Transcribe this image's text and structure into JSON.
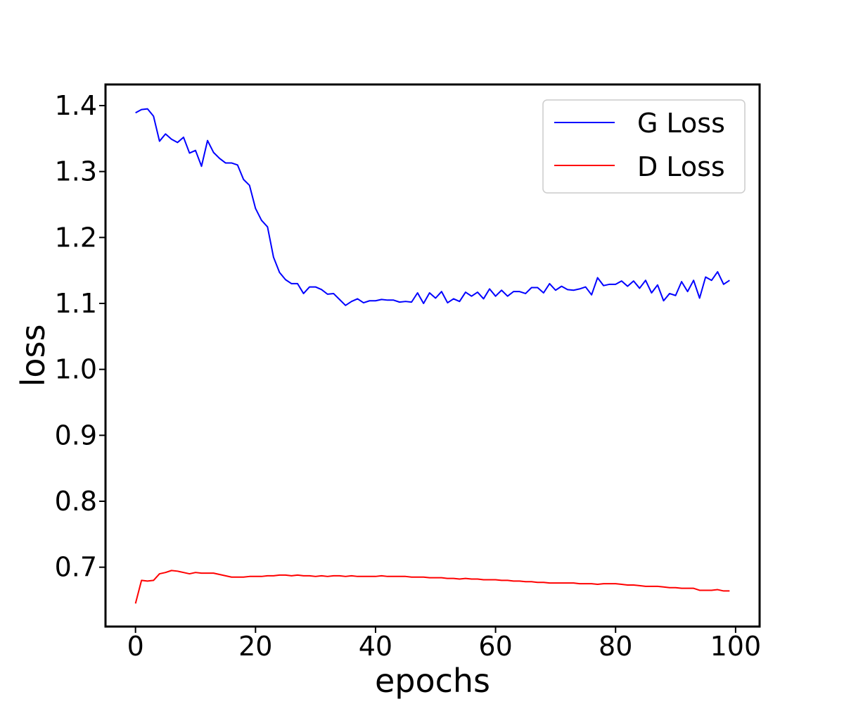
{
  "chart_data": {
    "type": "line",
    "title": "",
    "xlabel": "epochs",
    "ylabel": "loss",
    "xlim": [
      -5,
      104
    ],
    "ylim": [
      0.61,
      1.432
    ],
    "xticks": [
      0,
      20,
      40,
      60,
      80,
      100
    ],
    "yticks": [
      0.7,
      0.8,
      0.9,
      1.0,
      1.1,
      1.2,
      1.3,
      1.4
    ],
    "ytick_labels": [
      "0.7",
      "0.8",
      "0.9",
      "1.0",
      "1.1",
      "1.2",
      "1.3",
      "1.4"
    ],
    "grid": false,
    "legend": "top-right",
    "x": [
      0,
      1,
      2,
      3,
      4,
      5,
      6,
      7,
      8,
      9,
      10,
      11,
      12,
      13,
      14,
      15,
      16,
      17,
      18,
      19,
      20,
      21,
      22,
      23,
      24,
      25,
      26,
      27,
      28,
      29,
      30,
      31,
      32,
      33,
      34,
      35,
      36,
      37,
      38,
      39,
      40,
      41,
      42,
      43,
      44,
      45,
      46,
      47,
      48,
      49,
      50,
      51,
      52,
      53,
      54,
      55,
      56,
      57,
      58,
      59,
      60,
      61,
      62,
      63,
      64,
      65,
      66,
      67,
      68,
      69,
      70,
      71,
      72,
      73,
      74,
      75,
      76,
      77,
      78,
      79,
      80,
      81,
      82,
      83,
      84,
      85,
      86,
      87,
      88,
      89,
      90,
      91,
      92,
      93,
      94,
      95,
      96,
      97,
      98,
      99
    ],
    "series": [
      {
        "name": "G Loss",
        "color": "#0000ff",
        "values": [
          1.389,
          1.394,
          1.395,
          1.384,
          1.346,
          1.357,
          1.349,
          1.344,
          1.352,
          1.328,
          1.332,
          1.308,
          1.347,
          1.329,
          1.32,
          1.313,
          1.313,
          1.31,
          1.288,
          1.279,
          1.244,
          1.226,
          1.216,
          1.17,
          1.147,
          1.136,
          1.13,
          1.13,
          1.115,
          1.125,
          1.125,
          1.121,
          1.114,
          1.115,
          1.106,
          1.097,
          1.103,
          1.107,
          1.101,
          1.104,
          1.104,
          1.106,
          1.105,
          1.105,
          1.102,
          1.103,
          1.102,
          1.116,
          1.1,
          1.116,
          1.108,
          1.118,
          1.101,
          1.107,
          1.103,
          1.117,
          1.111,
          1.117,
          1.107,
          1.122,
          1.111,
          1.12,
          1.111,
          1.118,
          1.118,
          1.115,
          1.124,
          1.124,
          1.116,
          1.13,
          1.12,
          1.126,
          1.121,
          1.12,
          1.122,
          1.125,
          1.113,
          1.139,
          1.127,
          1.129,
          1.129,
          1.134,
          1.126,
          1.134,
          1.123,
          1.135,
          1.116,
          1.128,
          1.104,
          1.115,
          1.112,
          1.133,
          1.118,
          1.135,
          1.108,
          1.14,
          1.135,
          1.148,
          1.129,
          1.135
        ]
      },
      {
        "name": "D Loss",
        "color": "#ff0000",
        "values": [
          0.645,
          0.68,
          0.679,
          0.68,
          0.69,
          0.692,
          0.695,
          0.694,
          0.692,
          0.69,
          0.692,
          0.691,
          0.691,
          0.691,
          0.689,
          0.687,
          0.685,
          0.685,
          0.685,
          0.686,
          0.686,
          0.686,
          0.687,
          0.687,
          0.688,
          0.688,
          0.687,
          0.688,
          0.687,
          0.687,
          0.686,
          0.687,
          0.686,
          0.687,
          0.687,
          0.686,
          0.687,
          0.686,
          0.686,
          0.686,
          0.686,
          0.687,
          0.686,
          0.686,
          0.686,
          0.686,
          0.685,
          0.685,
          0.685,
          0.684,
          0.684,
          0.684,
          0.683,
          0.683,
          0.682,
          0.683,
          0.682,
          0.682,
          0.681,
          0.681,
          0.681,
          0.68,
          0.68,
          0.679,
          0.679,
          0.678,
          0.678,
          0.677,
          0.677,
          0.676,
          0.676,
          0.676,
          0.676,
          0.676,
          0.675,
          0.675,
          0.675,
          0.674,
          0.675,
          0.675,
          0.675,
          0.674,
          0.673,
          0.673,
          0.672,
          0.671,
          0.671,
          0.671,
          0.67,
          0.669,
          0.669,
          0.668,
          0.668,
          0.668,
          0.665,
          0.665,
          0.665,
          0.666,
          0.664,
          0.664
        ]
      }
    ],
    "frame_color": "#000000",
    "background": "#ffffff"
  }
}
